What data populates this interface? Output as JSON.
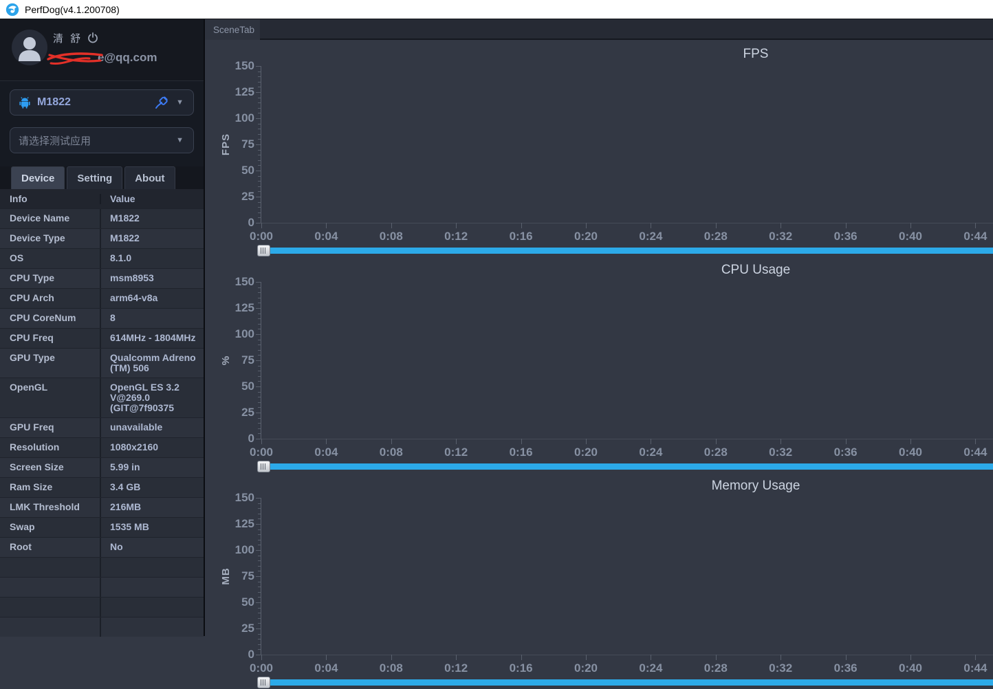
{
  "titlebar": {
    "title": "PerfDog(v4.1.200708)"
  },
  "icons": {
    "caret_down": "▼"
  },
  "colors": {
    "accent_blue": "#2caae9",
    "android_blue": "#2e9df2",
    "usb_blue": "#3d7bf5",
    "redact_red": "#e33028",
    "chart_bg": "#333844",
    "sidebar_bg": "#161a22"
  },
  "sidebar": {
    "user": {
      "name": "清 舒",
      "email_suffix": "e@qq.com"
    },
    "device_select": {
      "value": "M1822"
    },
    "app_select": {
      "placeholder": "请选择测试应用"
    },
    "tabs": [
      {
        "label": "Device",
        "active": true
      },
      {
        "label": "Setting",
        "active": false
      },
      {
        "label": "About",
        "active": false
      }
    ],
    "table": {
      "headers": [
        "Info",
        "Value"
      ],
      "rows": [
        [
          "Device Name",
          "M1822"
        ],
        [
          "Device Type",
          "M1822"
        ],
        [
          "OS",
          "8.1.0"
        ],
        [
          "CPU Type",
          "msm8953"
        ],
        [
          "CPU Arch",
          "arm64-v8a"
        ],
        [
          "CPU CoreNum",
          "8"
        ],
        [
          "CPU Freq",
          "614MHz - 1804MHz"
        ],
        [
          "GPU Type",
          "Qualcomm Adreno (TM) 506"
        ],
        [
          "OpenGL",
          "OpenGL ES 3.2 V@269.0 (GIT@7f90375"
        ],
        [
          "GPU Freq",
          "unavailable"
        ],
        [
          "Resolution",
          "1080x2160"
        ],
        [
          "Screen Size",
          "5.99 in"
        ],
        [
          "Ram Size",
          "3.4 GB"
        ],
        [
          "LMK Threshold",
          "216MB"
        ],
        [
          "Swap",
          "1535 MB"
        ],
        [
          "Root",
          "No"
        ],
        [
          "",
          ""
        ],
        [
          "",
          ""
        ],
        [
          "",
          ""
        ],
        [
          "",
          ""
        ]
      ]
    }
  },
  "main": {
    "scene_tab": "SceneTab"
  },
  "chart_data": [
    {
      "type": "line",
      "title": "FPS",
      "xlabel": "",
      "ylabel": "FPS",
      "ylim": [
        0,
        150
      ],
      "yticks": [
        0,
        25,
        50,
        75,
        100,
        125,
        150
      ],
      "yminor_step": 5,
      "xticks": [
        "0:00",
        "0:04",
        "0:08",
        "0:12",
        "0:16",
        "0:20",
        "0:24",
        "0:28",
        "0:32",
        "0:36",
        "0:40",
        "0:44"
      ],
      "grid": false,
      "legend": "none",
      "series": []
    },
    {
      "type": "line",
      "title": "CPU Usage",
      "xlabel": "",
      "ylabel": "%",
      "ylim": [
        0,
        150
      ],
      "yticks": [
        0,
        25,
        50,
        75,
        100,
        125,
        150
      ],
      "yminor_step": 5,
      "xticks": [
        "0:00",
        "0:04",
        "0:08",
        "0:12",
        "0:16",
        "0:20",
        "0:24",
        "0:28",
        "0:32",
        "0:36",
        "0:40",
        "0:44"
      ],
      "grid": false,
      "legend": "none",
      "series": []
    },
    {
      "type": "line",
      "title": "Memory Usage",
      "xlabel": "",
      "ylabel": "MB",
      "ylim": [
        0,
        150
      ],
      "yticks": [
        0,
        25,
        50,
        75,
        100,
        125,
        150
      ],
      "yminor_step": 5,
      "xticks": [
        "0:00",
        "0:04",
        "0:08",
        "0:12",
        "0:16",
        "0:20",
        "0:24",
        "0:28",
        "0:32",
        "0:36",
        "0:40",
        "0:44"
      ],
      "grid": false,
      "legend": "none",
      "series": []
    }
  ]
}
